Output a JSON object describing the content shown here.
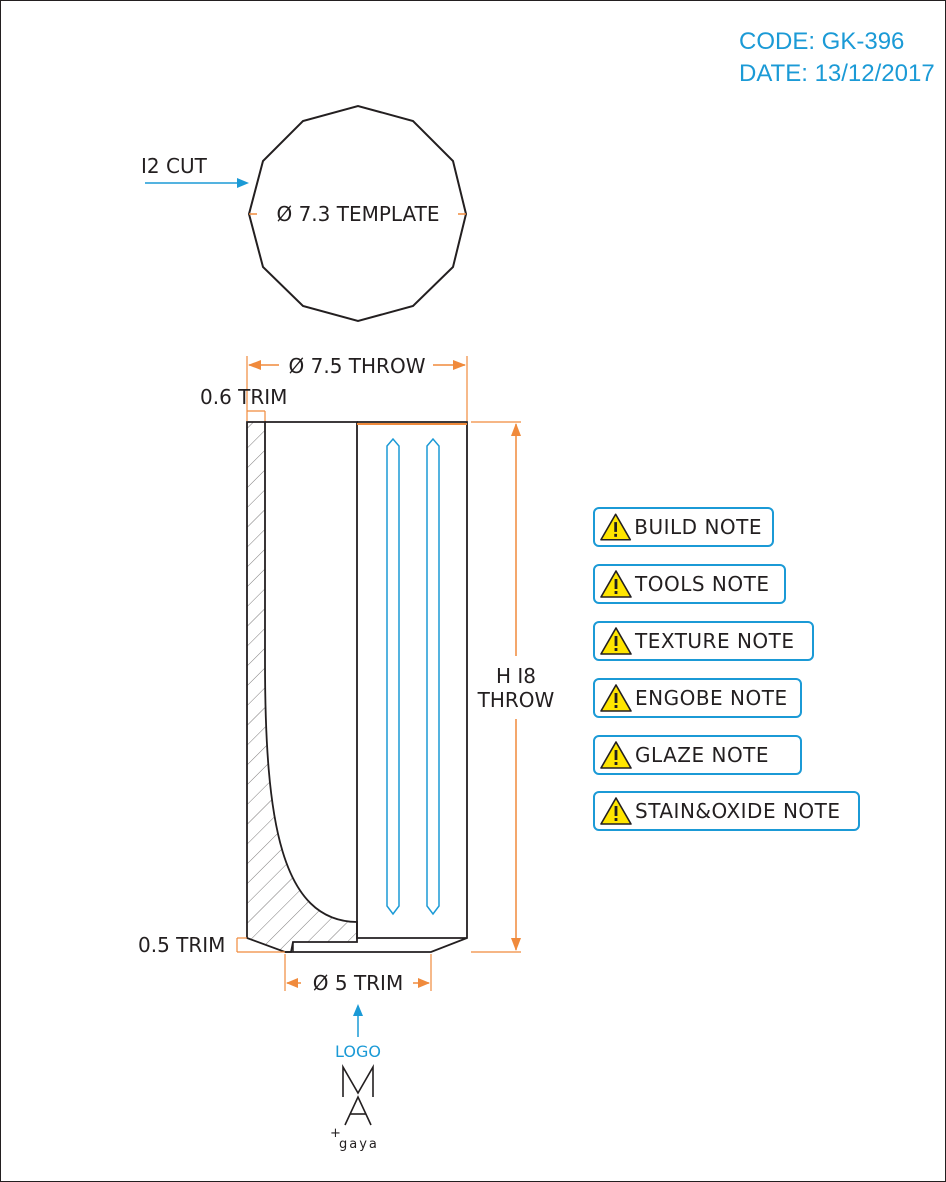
{
  "header": {
    "code": "CODE: GK-396",
    "date": "DATE: 13/12/2017"
  },
  "template": {
    "cut_label": "I2 CUT",
    "diameter_label": "Ø 7.3 TEMPLATE"
  },
  "dimensions": {
    "throw_diameter": "Ø 7.5 THROW",
    "top_trim": "0.6 TRIM",
    "height_line1": "H I8",
    "height_line2": "THROW",
    "bottom_trim": "0.5 TRIM",
    "foot_diameter": "Ø 5 TRIM"
  },
  "logo": {
    "label": "LOGO",
    "plus": "+",
    "brand": "gaya"
  },
  "notes": [
    {
      "label": "BUILD NOTE",
      "icon": "warning-icon"
    },
    {
      "label": "TOOLS NOTE",
      "icon": "warning-icon"
    },
    {
      "label": "TEXTURE NOTE",
      "icon": "warning-icon"
    },
    {
      "label": "ENGOBE NOTE",
      "icon": "warning-icon"
    },
    {
      "label": "GLAZE NOTE",
      "icon": "warning-icon"
    },
    {
      "label": "STAIN&OXIDE NOTE",
      "icon": "warning-icon"
    }
  ],
  "colors": {
    "accent_blue": "#1b9ad6",
    "dimension_orange": "#f08a3c",
    "outline": "#231f20",
    "warning_yellow": "#ffe500"
  }
}
